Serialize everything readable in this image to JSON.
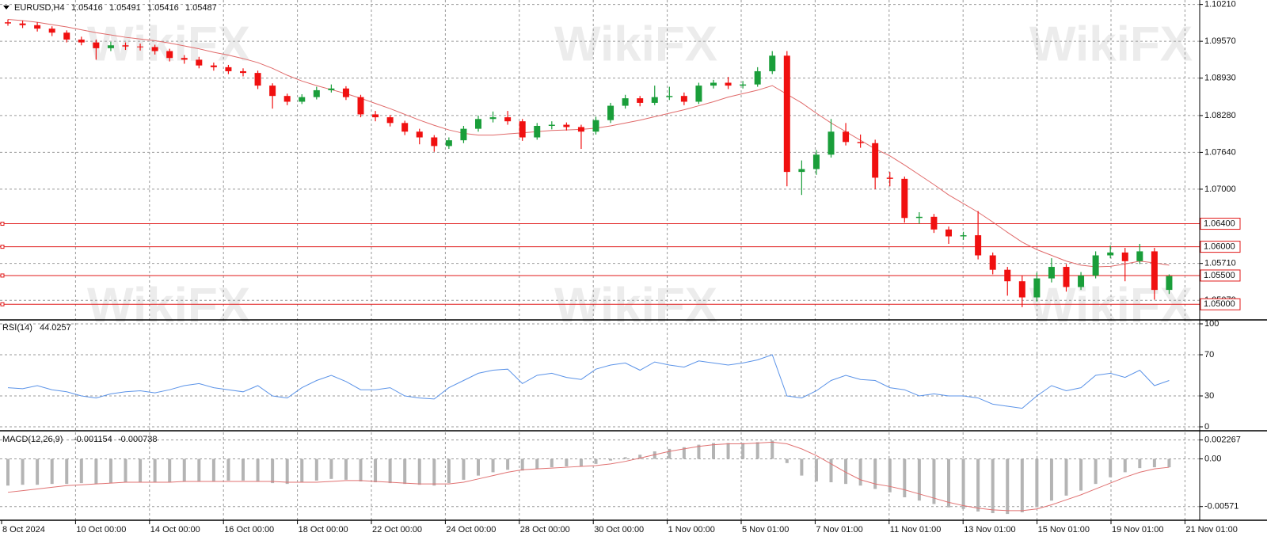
{
  "watermark": "WikiFX",
  "time_axis": [
    "8 Oct 2024",
    "10 Oct 00:00",
    "14 Oct 00:00",
    "16 Oct 00:00",
    "18 Oct 00:00",
    "22 Oct 00:00",
    "24 Oct 00:00",
    "28 Oct 00:00",
    "30 Oct 00:00",
    "1 Nov 00:00",
    "5 Nov 01:00",
    "7 Nov 01:00",
    "11 Nov 01:00",
    "13 Nov 01:00",
    "15 Nov 01:00",
    "19 Nov 01:00",
    "21 Nov 01:00"
  ],
  "chart_data": [
    {
      "type": "candlestick",
      "title": "EURUSD,H4",
      "header_values": [
        1.05416,
        1.05491,
        1.05416,
        1.05487
      ],
      "bull_color": "#1a9e3a",
      "bear_color": "#f01010",
      "grid": true,
      "ylim": [
        1.0477,
        1.1026
      ],
      "yticks": [
        {
          "value": 1.1021,
          "label": "1.10210"
        },
        {
          "value": 1.0957,
          "label": "1.09570"
        },
        {
          "value": 1.0893,
          "label": "1.08930"
        },
        {
          "value": 1.0828,
          "label": "1.08280"
        },
        {
          "value": 1.0764,
          "label": "1.07640"
        },
        {
          "value": 1.07,
          "label": "1.07000"
        },
        {
          "value": 1.0571,
          "label": "1.05710"
        },
        {
          "value": 1.0507,
          "label": "1.05070"
        }
      ],
      "levels": {
        "color": "#e01818",
        "values": [
          {
            "value": 1.064,
            "label": "1.06400"
          },
          {
            "value": 1.06,
            "label": "1.06000"
          },
          {
            "value": 1.055,
            "label": "1.05500"
          },
          {
            "value": 1.05,
            "label": "1.05000"
          }
        ]
      },
      "open": [
        1.099,
        1.0988,
        1.0985,
        1.0979,
        1.0972,
        1.096,
        1.0955,
        1.0945,
        1.095,
        1.0948,
        1.0947,
        1.094,
        1.0928,
        1.0925,
        1.0915,
        1.0912,
        1.0905,
        1.0902,
        1.088,
        1.0862,
        1.0852,
        1.086,
        1.0872,
        1.0875,
        1.086,
        1.083,
        1.0825,
        1.0815,
        1.08,
        1.079,
        1.0775,
        1.0785,
        1.0805,
        1.0822,
        1.0825,
        1.0818,
        1.079,
        1.081,
        1.0812,
        1.0808,
        1.08,
        1.082,
        1.0845,
        1.0858,
        1.085,
        1.086,
        1.0862,
        1.0852,
        1.088,
        1.0885,
        1.088,
        1.0882,
        1.0905,
        1.0932,
        1.073,
        1.0735,
        1.076,
        1.08,
        1.0782,
        1.078,
        1.072,
        1.0718,
        1.065,
        1.0652,
        1.063,
        1.0618,
        1.062,
        1.0585,
        1.056,
        1.054,
        1.0512,
        1.0545,
        1.0565,
        1.053,
        1.055,
        1.0585,
        1.059,
        1.0575,
        1.0592,
        1.0525
      ],
      "high": [
        1.0995,
        1.0993,
        1.099,
        1.0983,
        1.0976,
        1.0965,
        1.096,
        1.0956,
        1.0955,
        1.0953,
        1.0951,
        1.0944,
        1.0933,
        1.093,
        1.092,
        1.0916,
        1.091,
        1.0906,
        1.0884,
        1.0866,
        1.0865,
        1.0878,
        1.0882,
        1.0879,
        1.0864,
        1.0836,
        1.0829,
        1.0819,
        1.0805,
        1.0794,
        1.079,
        1.081,
        1.0828,
        1.0835,
        1.0836,
        1.0822,
        1.0815,
        1.0818,
        1.0816,
        1.0812,
        1.0826,
        1.085,
        1.0864,
        1.0862,
        1.088,
        1.0878,
        1.0868,
        1.0885,
        1.089,
        1.0895,
        1.0888,
        1.0912,
        1.094,
        1.094,
        1.075,
        1.0768,
        1.0822,
        1.0815,
        1.0795,
        1.0786,
        1.073,
        1.0722,
        1.066,
        1.0657,
        1.0635,
        1.0626,
        1.0662,
        1.059,
        1.0565,
        1.055,
        1.0555,
        1.058,
        1.057,
        1.0556,
        1.0592,
        1.0602,
        1.0598,
        1.0605,
        1.0598,
        1.0552
      ],
      "low": [
        1.0984,
        1.098,
        1.0974,
        1.0966,
        1.0955,
        1.095,
        1.0925,
        1.094,
        1.0942,
        1.0941,
        1.0934,
        1.0922,
        1.0918,
        1.091,
        1.0906,
        1.09,
        1.0896,
        1.0874,
        1.084,
        1.0846,
        1.0848,
        1.0856,
        1.0868,
        1.0855,
        1.0825,
        1.0818,
        1.0809,
        1.0794,
        1.0778,
        1.0765,
        1.077,
        1.078,
        1.08,
        1.0816,
        1.0812,
        1.0784,
        1.0786,
        1.0804,
        1.0802,
        1.077,
        1.0795,
        1.0815,
        1.084,
        1.0844,
        1.0846,
        1.0855,
        1.0846,
        1.0848,
        1.0875,
        1.0874,
        1.0875,
        1.0878,
        1.09,
        1.0705,
        1.069,
        1.0725,
        1.0755,
        1.0776,
        1.0772,
        1.07,
        1.0705,
        1.0642,
        1.064,
        1.0624,
        1.0605,
        1.0612,
        1.0578,
        1.0552,
        1.0515,
        1.0495,
        1.0505,
        1.0538,
        1.0522,
        1.0525,
        1.0545,
        1.058,
        1.054,
        1.057,
        1.0508,
        1.0518
      ],
      "close": [
        1.0988,
        1.0985,
        1.0979,
        1.0972,
        1.096,
        1.0955,
        1.0945,
        1.095,
        1.0948,
        1.0947,
        1.094,
        1.0928,
        1.0925,
        1.0915,
        1.0912,
        1.0905,
        1.0902,
        1.088,
        1.0862,
        1.0852,
        1.086,
        1.0872,
        1.0875,
        1.086,
        1.083,
        1.0825,
        1.0815,
        1.08,
        1.079,
        1.0775,
        1.0785,
        1.0805,
        1.0822,
        1.0825,
        1.0818,
        1.079,
        1.081,
        1.0812,
        1.0808,
        1.08,
        1.082,
        1.0845,
        1.0858,
        1.085,
        1.086,
        1.0862,
        1.0852,
        1.088,
        1.0885,
        1.088,
        1.0882,
        1.0905,
        1.0932,
        1.073,
        1.0735,
        1.076,
        1.08,
        1.0782,
        1.078,
        1.072,
        1.0718,
        1.065,
        1.0652,
        1.063,
        1.0618,
        1.062,
        1.0585,
        1.056,
        1.054,
        1.0512,
        1.0545,
        1.0565,
        1.053,
        1.055,
        1.0585,
        1.059,
        1.0575,
        1.0592,
        1.0525,
        1.0549
      ],
      "ma": {
        "color": "#e06a6a",
        "values": [
          1.0995,
          1.0993,
          1.099,
          1.0986,
          1.0982,
          1.0977,
          1.0972,
          1.0968,
          1.0964,
          1.0961,
          1.0958,
          1.0954,
          1.0949,
          1.0944,
          1.0938,
          1.0933,
          1.0927,
          1.092,
          1.091,
          1.0898,
          1.0888,
          1.088,
          1.0873,
          1.0866,
          1.0858,
          1.0849,
          1.084,
          1.083,
          1.082,
          1.0811,
          1.0803,
          1.0797,
          1.0794,
          1.0794,
          1.0796,
          1.0798,
          1.08,
          1.0802,
          1.0803,
          1.0804,
          1.0806,
          1.081,
          1.0815,
          1.082,
          1.0826,
          1.0832,
          1.0838,
          1.0845,
          1.0852,
          1.086,
          1.0866,
          1.0872,
          1.088,
          1.0865,
          1.085,
          1.0832,
          1.0815,
          1.08,
          1.0785,
          1.077,
          1.0758,
          1.0742,
          1.0725,
          1.0708,
          1.069,
          1.0675,
          1.066,
          1.0643,
          1.0625,
          1.0608,
          1.0595,
          1.0585,
          1.0575,
          1.0568,
          1.0565,
          1.0566,
          1.057,
          1.0575,
          1.0572,
          1.0568
        ]
      }
    },
    {
      "type": "line",
      "title": "RSI(14)",
      "title_value": 44.0257,
      "ylim": [
        0,
        100
      ],
      "yticks": [
        0,
        30,
        70,
        100
      ],
      "series": [
        {
          "color": "#5b93e8",
          "values": [
            38,
            37,
            40,
            36,
            34,
            30,
            28,
            32,
            34,
            35,
            33,
            36,
            40,
            42,
            38,
            36,
            34,
            40,
            30,
            28,
            38,
            45,
            50,
            44,
            36,
            36,
            38,
            30,
            28,
            27,
            38,
            45,
            52,
            55,
            56,
            42,
            50,
            52,
            48,
            46,
            56,
            60,
            62,
            55,
            63,
            60,
            58,
            64,
            62,
            60,
            62,
            65,
            70,
            30,
            28,
            35,
            45,
            50,
            46,
            45,
            38,
            36,
            30,
            32,
            30,
            30,
            28,
            22,
            20,
            18,
            30,
            40,
            35,
            38,
            50,
            52,
            48,
            55,
            40,
            45
          ]
        }
      ]
    },
    {
      "type": "macd",
      "title": "MACD(12,26,9)",
      "title_values": [
        -0.001154,
        -0.000738
      ],
      "ylim": [
        -0.00716,
        0.00299
      ],
      "yticks": [
        0.002267,
        {
          "value": 0,
          "label": "0.00"
        },
        -0.00571
      ],
      "histogram": {
        "color": "#b4b4b4",
        "values": [
          -0.0032,
          -0.0031,
          -0.0031,
          -0.003,
          -0.003,
          -0.0029,
          -0.003,
          -0.0029,
          -0.0028,
          -0.0028,
          -0.0028,
          -0.0028,
          -0.0027,
          -0.0027,
          -0.0027,
          -0.0026,
          -0.0026,
          -0.0027,
          -0.0029,
          -0.003,
          -0.0028,
          -0.0026,
          -0.0024,
          -0.0025,
          -0.0027,
          -0.0028,
          -0.0029,
          -0.003,
          -0.0031,
          -0.0032,
          -0.0029,
          -0.0025,
          -0.002,
          -0.0016,
          -0.0013,
          -0.0014,
          -0.0012,
          -0.001,
          -0.0009,
          -0.0009,
          -0.0006,
          -0.0002,
          0.0002,
          0.0005,
          0.0009,
          0.0012,
          0.0014,
          0.0017,
          0.0019,
          0.0019,
          0.0019,
          0.002,
          0.0022,
          -0.0005,
          -0.002,
          -0.0027,
          -0.0028,
          -0.003,
          -0.0032,
          -0.0036,
          -0.004,
          -0.0046,
          -0.005,
          -0.0054,
          -0.0058,
          -0.006,
          -0.0063,
          -0.0065,
          -0.0066,
          -0.0064,
          -0.0058,
          -0.005,
          -0.0044,
          -0.0038,
          -0.003,
          -0.0022,
          -0.0016,
          -0.0011,
          -0.001,
          -0.001
        ]
      },
      "signal": {
        "color": "#e07272",
        "values": [
          -0.004,
          -0.0038,
          -0.0036,
          -0.0034,
          -0.0032,
          -0.0031,
          -0.003,
          -0.0029,
          -0.0028,
          -0.0028,
          -0.0028,
          -0.0028,
          -0.0027,
          -0.0027,
          -0.0027,
          -0.0027,
          -0.0027,
          -0.0027,
          -0.0027,
          -0.0028,
          -0.0028,
          -0.0028,
          -0.0027,
          -0.0026,
          -0.0026,
          -0.0027,
          -0.0028,
          -0.0029,
          -0.003,
          -0.003,
          -0.003,
          -0.0028,
          -0.0024,
          -0.002,
          -0.0016,
          -0.0013,
          -0.0012,
          -0.0011,
          -0.001,
          -0.0009,
          -0.0008,
          -0.0006,
          -0.0003,
          0.0001,
          0.0005,
          0.0009,
          0.0012,
          0.0015,
          0.0017,
          0.0018,
          0.0018,
          0.0019,
          0.002,
          0.0018,
          0.0012,
          0.0004,
          -0.0006,
          -0.0016,
          -0.0025,
          -0.003,
          -0.0033,
          -0.0037,
          -0.0042,
          -0.0047,
          -0.0052,
          -0.0056,
          -0.0059,
          -0.0061,
          -0.0062,
          -0.0062,
          -0.006,
          -0.0055,
          -0.0049,
          -0.0043,
          -0.0036,
          -0.0029,
          -0.0022,
          -0.0016,
          -0.0012,
          -0.001
        ]
      }
    }
  ]
}
